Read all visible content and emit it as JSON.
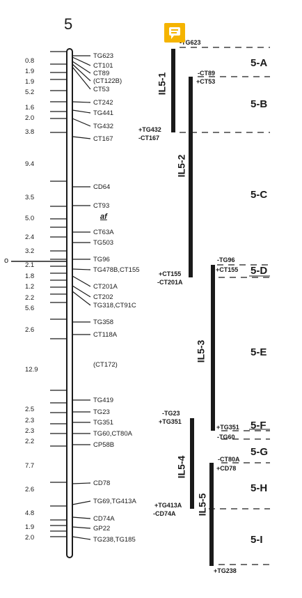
{
  "chromosome": "5",
  "centromere_label": "o",
  "distances": [
    "0.8",
    "1.9",
    "1.9",
    "5.2",
    "1.6",
    "2.0",
    "3.8",
    "9.4",
    "3.5",
    "5.0",
    "2.4",
    "3.2",
    "2.1",
    "1.8",
    "1.2",
    "2.2",
    "5.6",
    "2.6",
    "12.9",
    "2.5",
    "2.3",
    "2.3",
    "2.2",
    "7.7",
    "2.6",
    "4.8",
    "1.9",
    "2.0"
  ],
  "markers": [
    "TG623",
    "CT101",
    "CT89",
    "(CT122B)",
    "CT53",
    "CT242",
    "TG441",
    "TG432",
    "CT167",
    "CD64",
    "CT93",
    "af",
    "CT63A",
    "TG503",
    "TG96",
    "TG478B,CT155",
    "CT201A",
    "CT202",
    "TG318,CT91C",
    "TG358",
    "CT118A",
    "(CT172)",
    "TG419",
    "TG23",
    "TG351",
    "TG60,CT80A",
    "CP58B",
    "CD78",
    "TG69,TG413A",
    "CD74A",
    "GP22",
    "TG238,TG185"
  ],
  "lines": [
    {
      "name": "IL5-1",
      "start": [
        "-TG623"
      ],
      "end": [
        "+TG432",
        "-CT167"
      ]
    },
    {
      "name": "IL5-2",
      "start": [
        "-CT89",
        "+CT53"
      ],
      "end": [
        "+CT155",
        "-CT201A"
      ]
    },
    {
      "name": "IL5-3",
      "start": [
        "-TG96",
        "+CT155"
      ],
      "end": [
        "+TG351",
        "-TG60"
      ]
    },
    {
      "name": "IL5-4",
      "start": [
        "-TG23",
        "+TG351"
      ],
      "end": [
        "+TG413A",
        "-CD74A"
      ]
    },
    {
      "name": "IL5-5",
      "start": [
        "-CT80A",
        "+CD78"
      ],
      "end": [
        "+TG238"
      ]
    }
  ],
  "segments": [
    "5-A",
    "5-B",
    "5-C",
    "5-D",
    "5-E",
    "5-F",
    "5-G",
    "5-H",
    "5-I"
  ],
  "colors": {
    "ink": "#1a1a1a",
    "note": "#f5b400"
  },
  "icons": {
    "note": "comment-note-icon"
  }
}
